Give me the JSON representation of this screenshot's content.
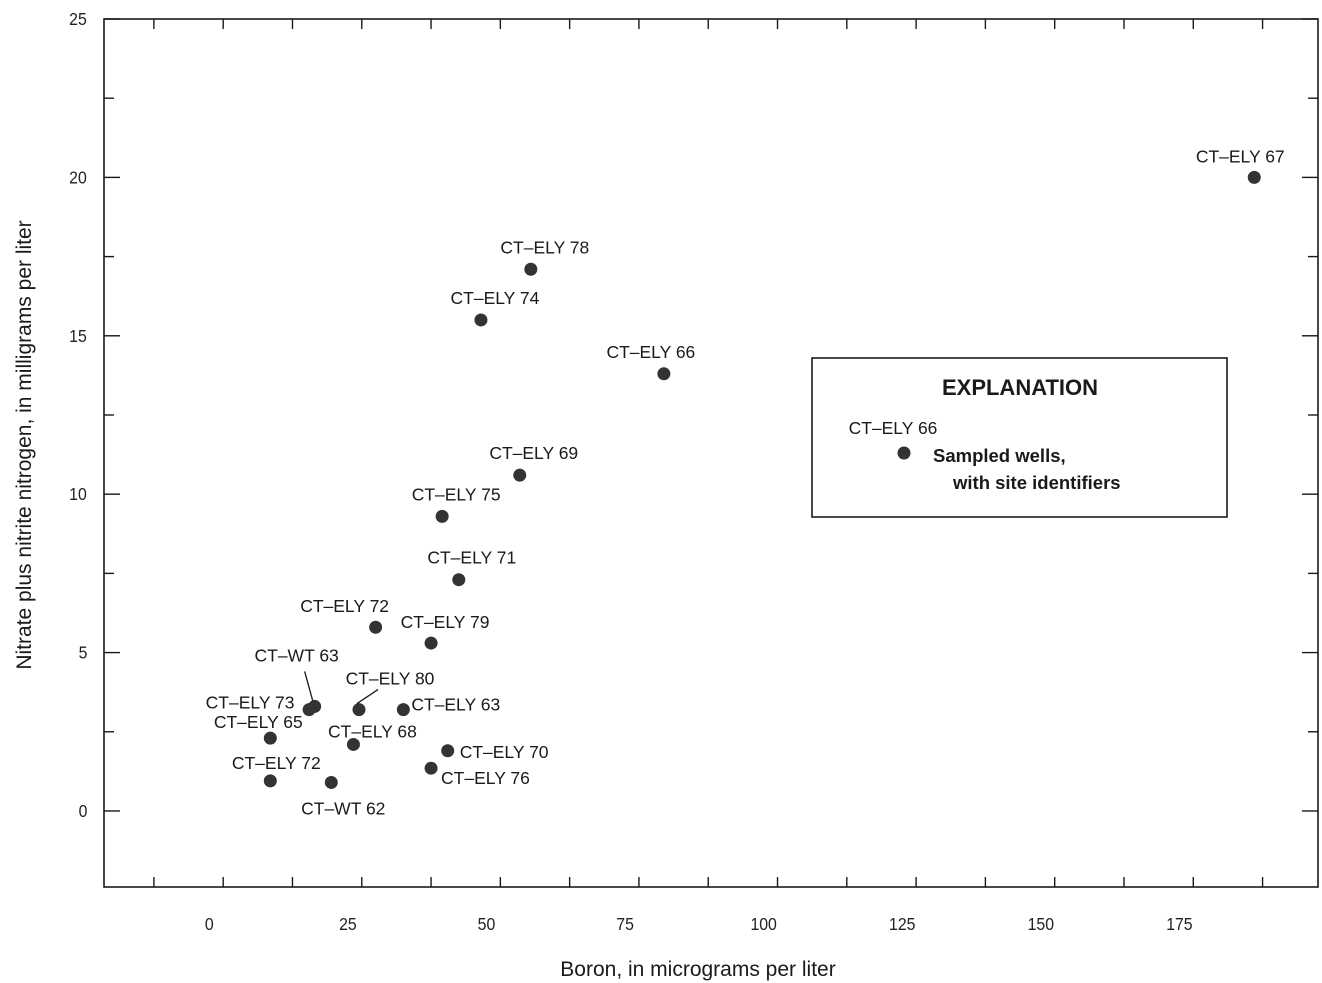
{
  "chart_data": {
    "type": "scatter",
    "xlabel": "Boron, in micrograms per liter",
    "ylabel": "Nitrate plus nitrite nitrogen, in milligrams per liter",
    "xlim": [
      -19,
      200
    ],
    "ylim": [
      -2.4,
      25
    ],
    "xticks": [
      0,
      25,
      50,
      75,
      100,
      125,
      150,
      175
    ],
    "yticks": [
      0,
      5,
      10,
      15,
      20,
      25
    ],
    "grid": false,
    "legend": {
      "title": "EXPLANATION",
      "sample_label": "CT–ELY 66",
      "text_line1": "Sampled wells,",
      "text_line2": "with site identifiers",
      "placement": "right-middle"
    },
    "marker_color": "#333333",
    "points": [
      {
        "label": "CT–ELY 67",
        "x": 188.5,
        "y": 20.0
      },
      {
        "label": "CT–ELY 78",
        "x": 58.0,
        "y": 17.1
      },
      {
        "label": "CT–ELY 74",
        "x": 49.0,
        "y": 15.5
      },
      {
        "label": "CT–ELY 66",
        "x": 82.0,
        "y": 13.8
      },
      {
        "label": "CT–ELY 69",
        "x": 56.0,
        "y": 10.6
      },
      {
        "label": "CT–ELY 75",
        "x": 42.0,
        "y": 9.3
      },
      {
        "label": "CT–ELY 71",
        "x": 45.0,
        "y": 7.3
      },
      {
        "label": "CT–ELY 72",
        "x": 30.0,
        "y": 5.8
      },
      {
        "label": "CT–ELY 79",
        "x": 40.0,
        "y": 5.3
      },
      {
        "label": "CT–WT 63",
        "x": 19.0,
        "y": 3.3
      },
      {
        "label": "CT–ELY 73",
        "x": 18.0,
        "y": 3.2
      },
      {
        "label": "CT–ELY 80",
        "x": 27.0,
        "y": 3.2
      },
      {
        "label": "CT–ELY 63",
        "x": 35.0,
        "y": 3.2
      },
      {
        "label": "CT–ELY 65",
        "x": 11.0,
        "y": 2.3
      },
      {
        "label": "CT–ELY 68",
        "x": 26.0,
        "y": 2.1
      },
      {
        "label": "CT–ELY 70",
        "x": 43.0,
        "y": 1.9
      },
      {
        "label": "CT–ELY 76",
        "x": 40.0,
        "y": 1.35
      },
      {
        "label": "CT–ELY 72",
        "x": 11.0,
        "y": 0.95
      },
      {
        "label": "CT–WT 62",
        "x": 22.0,
        "y": 0.9
      }
    ]
  }
}
